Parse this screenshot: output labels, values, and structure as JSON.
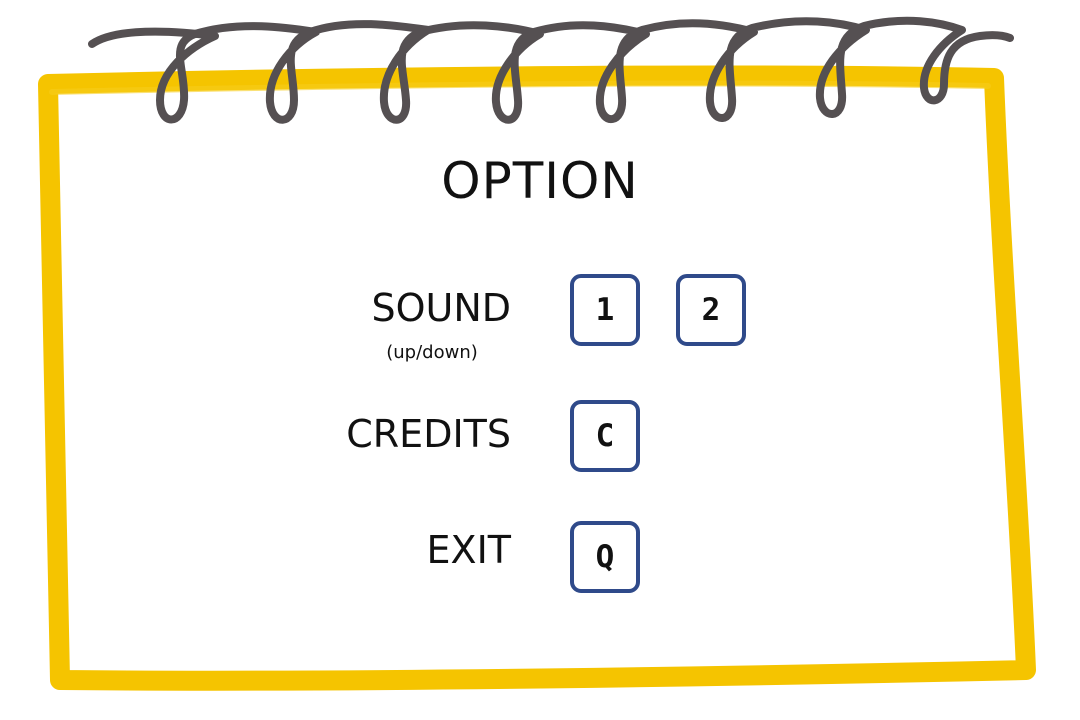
{
  "menu": {
    "title": "OPTION",
    "items": [
      {
        "label": "SOUND",
        "sublabel": "(up/down)",
        "keys": [
          "1",
          "2"
        ]
      },
      {
        "label": "CREDITS",
        "keys": [
          "C"
        ]
      },
      {
        "label": "EXIT",
        "keys": [
          "Q"
        ]
      }
    ]
  },
  "colors": {
    "frame": "#f5c400",
    "spiral": "#555052",
    "key_border": "#2f4a8a"
  }
}
